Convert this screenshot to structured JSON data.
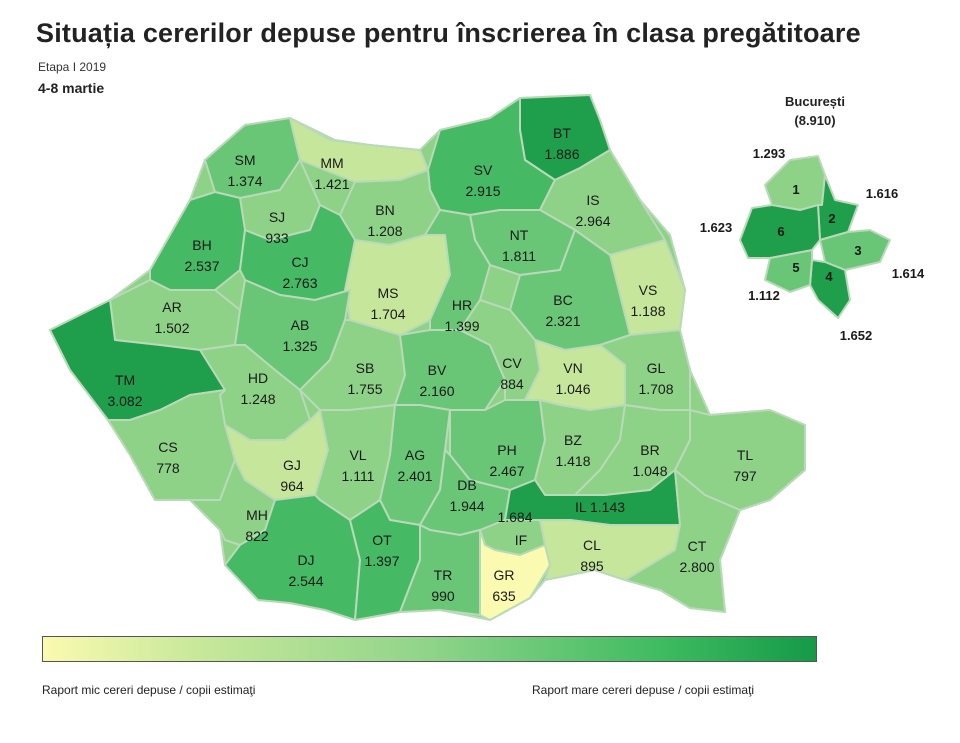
{
  "title": "Situația cererilor depuse pentru înscrierea în clasa pregătitoare",
  "stage": "Etapa I 2019",
  "dates": "4-8 martie",
  "colors": {
    "low": "#fafab0",
    "light": "#c6e79b",
    "mid": "#8dd287",
    "midhigh": "#68c676",
    "high": "#45b964",
    "top": "#1f9e4c",
    "border": "#b9d9b9"
  },
  "bucuresti": {
    "title": "București",
    "total": "(8.910)",
    "sectors": [
      {
        "sector": "1",
        "value": "1.293"
      },
      {
        "sector": "2",
        "value": "1.616"
      },
      {
        "sector": "3",
        "value": "1.614"
      },
      {
        "sector": "4",
        "value": "1.652"
      },
      {
        "sector": "5",
        "value": "1.112"
      },
      {
        "sector": "6",
        "value": "1.623"
      }
    ]
  },
  "counties": [
    {
      "code": "SM",
      "value": "1.374"
    },
    {
      "code": "MM",
      "value": "1.421"
    },
    {
      "code": "BT",
      "value": "1.886"
    },
    {
      "code": "SV",
      "value": "2.915"
    },
    {
      "code": "SJ",
      "value": "933"
    },
    {
      "code": "BN",
      "value": "1.208"
    },
    {
      "code": "IS",
      "value": "2.964"
    },
    {
      "code": "BH",
      "value": "2.537"
    },
    {
      "code": "CJ",
      "value": "2.763"
    },
    {
      "code": "NT",
      "value": "1.811"
    },
    {
      "code": "MS",
      "value": "1.704"
    },
    {
      "code": "HR",
      "value": "1.399"
    },
    {
      "code": "VS",
      "value": "1.188"
    },
    {
      "code": "AR",
      "value": "1.502"
    },
    {
      "code": "AB",
      "value": "1.325"
    },
    {
      "code": "BC",
      "value": "2.321"
    },
    {
      "code": "TM",
      "value": "3.082"
    },
    {
      "code": "HD",
      "value": "1.248"
    },
    {
      "code": "SB",
      "value": "1.755"
    },
    {
      "code": "BV",
      "value": "2.160"
    },
    {
      "code": "CV",
      "value": "884"
    },
    {
      "code": "VN",
      "value": "1.046"
    },
    {
      "code": "GL",
      "value": "1.708"
    },
    {
      "code": "CS",
      "value": "778"
    },
    {
      "code": "GJ",
      "value": "964"
    },
    {
      "code": "VL",
      "value": "1.111"
    },
    {
      "code": "AG",
      "value": "2.401"
    },
    {
      "code": "PH",
      "value": "2.467"
    },
    {
      "code": "BZ",
      "value": "1.418"
    },
    {
      "code": "BR",
      "value": "1.048"
    },
    {
      "code": "TL",
      "value": "797"
    },
    {
      "code": "MH",
      "value": "822"
    },
    {
      "code": "DB",
      "value": "1.944"
    },
    {
      "code": "IL",
      "value": "1.143"
    },
    {
      "code": "IF",
      "value": "1.684"
    },
    {
      "code": "DJ",
      "value": "2.544"
    },
    {
      "code": "OT",
      "value": "1.397"
    },
    {
      "code": "TR",
      "value": "990"
    },
    {
      "code": "GR",
      "value": "635"
    },
    {
      "code": "CL",
      "value": "895"
    },
    {
      "code": "CT",
      "value": "2.800"
    }
  ],
  "legend": {
    "low_label": "Raport mic cereri depuse / copii estimaţi",
    "high_label": "Raport mare cereri depuse / copii estimaţi"
  }
}
